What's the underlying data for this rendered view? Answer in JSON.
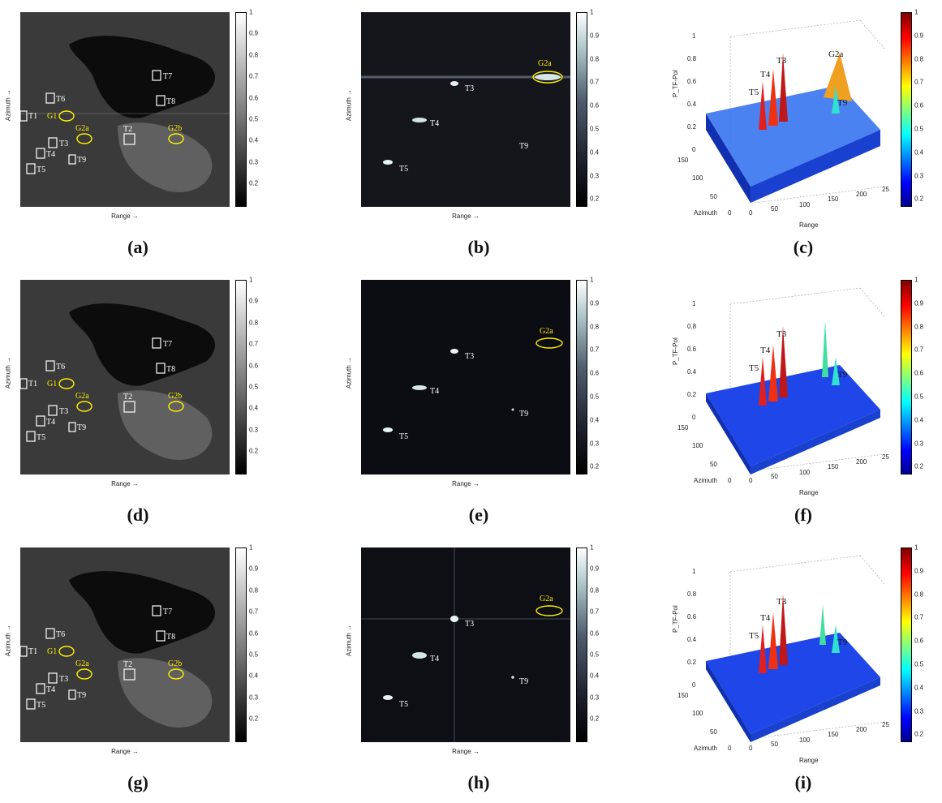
{
  "colorbar_ticks": {
    "gray": [
      "1",
      "0.9",
      "0.8",
      "0.7",
      "0.6",
      "0.5",
      "0.4",
      "0.3",
      "0.2"
    ],
    "bone": [
      "1",
      "0.9",
      "0.8",
      "0.7",
      "0.6",
      "0.5",
      "0.4",
      "0.3",
      "0.2"
    ],
    "jet": [
      "1",
      "0.9",
      "0.8",
      "0.7",
      "0.6",
      "0.5",
      "0.4",
      "0.3",
      "0.2"
    ]
  },
  "axis_labels": {
    "range": "Range →",
    "azimuth": "Azimuth →"
  },
  "plot3d_labels": {
    "zlabel": "P_TF-Pol",
    "xlabel": "Range",
    "ylabel": "Azimuth",
    "z_ticks": [
      "1",
      "0.8",
      "0.6",
      "0.4",
      "0.2",
      "0"
    ],
    "x_ticks": [
      "0",
      "50",
      "100",
      "150",
      "200",
      "25"
    ],
    "y_ticks": [
      "150",
      "100",
      "50",
      "0"
    ]
  },
  "target_labels": {
    "T1": "T1",
    "T2": "T2",
    "T3": "T3",
    "T4": "T4",
    "T5": "T5",
    "T6": "T6",
    "T7": "T7",
    "T8": "T8",
    "T9": "T9",
    "G1": "G1",
    "G2a": "G2a",
    "G2b": "G2b"
  },
  "captions": [
    "(a)",
    "(b)",
    "(c)",
    "(d)",
    "(e)",
    "(f)",
    "(g)",
    "(h)",
    "(i)"
  ],
  "colors": {
    "target_box": "#ffffff",
    "ellipse": "#ffee00",
    "surface_peak": "#d01818",
    "surface_base": "#2040e0"
  }
}
